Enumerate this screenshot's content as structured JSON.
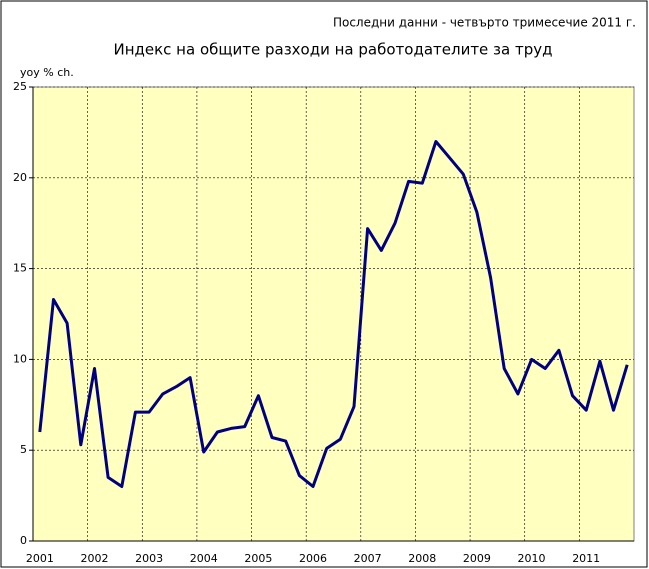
{
  "chart_data": {
    "type": "line",
    "note": "Последни данни - четвърто тримесечие 2011 г.",
    "title": "Индекс на общите разходи на работодателите за труд",
    "ylabel": "yoy % ch.",
    "categories": [
      "2001",
      null,
      null,
      null,
      "2002",
      null,
      null,
      null,
      "2003",
      null,
      null,
      null,
      "2004",
      null,
      null,
      null,
      "2005",
      null,
      null,
      null,
      "2006",
      null,
      null,
      null,
      "2007",
      null,
      null,
      null,
      "2008",
      null,
      null,
      null,
      "2009",
      null,
      null,
      null,
      "2010",
      null,
      null,
      null,
      "2011",
      null,
      null,
      null
    ],
    "series": [
      {
        "name": "yoy % ch.",
        "color": "#000080",
        "values": [
          6.0,
          13.3,
          12.0,
          5.3,
          9.5,
          3.5,
          3.0,
          7.1,
          7.1,
          8.1,
          8.5,
          9.0,
          4.9,
          6.0,
          6.2,
          6.3,
          8.0,
          5.7,
          5.5,
          3.6,
          3.0,
          5.1,
          5.6,
          7.4,
          17.2,
          16.0,
          17.5,
          19.8,
          19.7,
          22.0,
          21.1,
          20.2,
          18.1,
          14.5,
          9.5,
          8.1,
          10.0,
          9.5,
          10.5,
          8.0,
          7.2,
          9.9,
          7.2,
          9.7
        ]
      }
    ],
    "ylim": [
      0,
      25
    ],
    "yticks": [
      0,
      5,
      10,
      15,
      20,
      25
    ],
    "grid": true,
    "background": "#ffffc0"
  }
}
